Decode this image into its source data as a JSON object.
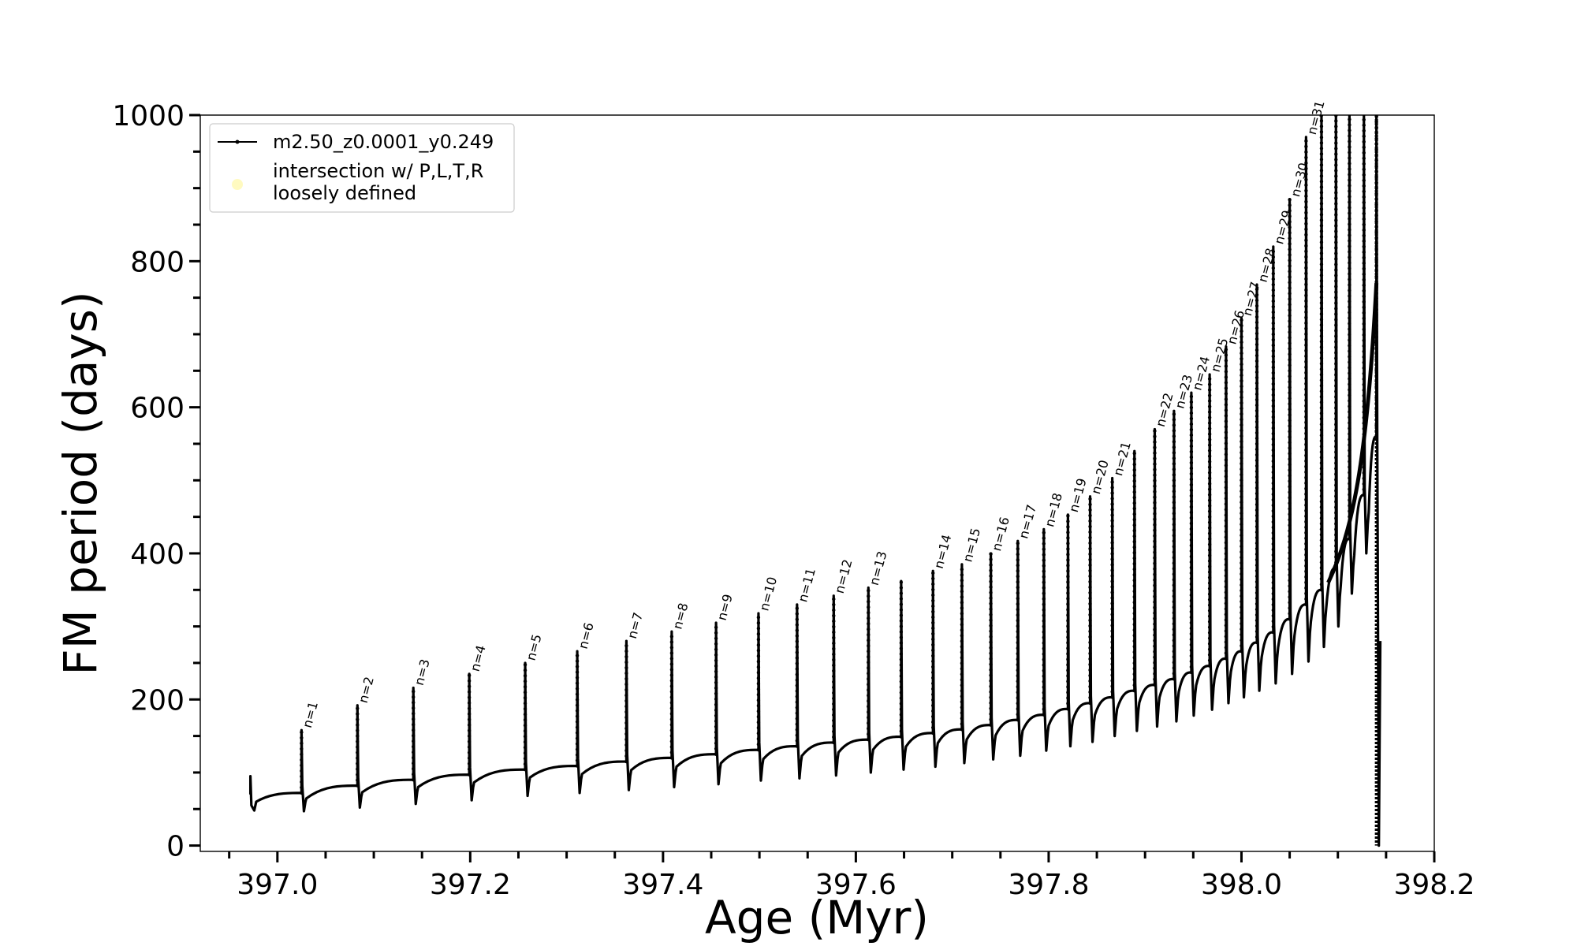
{
  "chart_data": {
    "type": "line",
    "xlabel": "Age (Myr)",
    "ylabel": "FM period (days)",
    "xlim": [
      396.92,
      398.2
    ],
    "ylim": [
      -8,
      1000
    ],
    "xticks": [
      "397.0",
      "397.2",
      "397.4",
      "397.6",
      "397.8",
      "398.0",
      "398.2"
    ],
    "yticks": [
      "0",
      "200",
      "400",
      "600",
      "800",
      "1000"
    ],
    "legend": {
      "placement": "upper-left",
      "entries": [
        {
          "label": "m2.50_z0.0001_y0.249",
          "marker": "line-with-dots",
          "color": "#000000"
        },
        {
          "label": "intersection w/ P,L,T,R\nloosely defined",
          "marker": "circle",
          "color": "#fffac0"
        }
      ]
    },
    "series": [
      {
        "name": "m2.50_z0.0001_y0.249",
        "color": "#000000",
        "start": {
          "x": 396.972,
          "y": 70
        },
        "end": {
          "x": 398.145,
          "y": 120
        },
        "pulses": [
          {
            "label": "n=1",
            "x": 397.025,
            "peak": 158,
            "dip": 47,
            "base": 72
          },
          {
            "label": "n=2",
            "x": 397.083,
            "peak": 192,
            "dip": 52,
            "base": 82
          },
          {
            "label": "n=3",
            "x": 397.141,
            "peak": 216,
            "dip": 57,
            "base": 90
          },
          {
            "label": "n=4",
            "x": 397.199,
            "peak": 235,
            "dip": 62,
            "base": 97
          },
          {
            "label": "n=5",
            "x": 397.257,
            "peak": 250,
            "dip": 68,
            "base": 104
          },
          {
            "label": "n=6",
            "x": 397.311,
            "peak": 266,
            "dip": 72,
            "base": 109
          },
          {
            "label": "n=7",
            "x": 397.362,
            "peak": 280,
            "dip": 76,
            "base": 115
          },
          {
            "label": "n=8",
            "x": 397.409,
            "peak": 293,
            "dip": 80,
            "base": 120
          },
          {
            "label": "n=9",
            "x": 397.455,
            "peak": 305,
            "dip": 84,
            "base": 125
          },
          {
            "label": "n=10",
            "x": 397.499,
            "peak": 318,
            "dip": 89,
            "base": 131
          },
          {
            "label": "n=11",
            "x": 397.539,
            "peak": 330,
            "dip": 92,
            "base": 136
          },
          {
            "label": "n=12",
            "x": 397.577,
            "peak": 342,
            "dip": 96,
            "base": 141
          },
          {
            "label": "n=13",
            "x": 397.613,
            "peak": 353,
            "dip": 100,
            "base": 145
          },
          {
            "label": "",
            "x": 397.647,
            "peak": 362,
            "dip": 104,
            "base": 149
          },
          {
            "label": "n=14",
            "x": 397.68,
            "peak": 376,
            "dip": 108,
            "base": 154
          },
          {
            "label": "n=15",
            "x": 397.71,
            "peak": 385,
            "dip": 113,
            "base": 159
          },
          {
            "label": "n=16",
            "x": 397.74,
            "peak": 400,
            "dip": 118,
            "base": 165
          },
          {
            "label": "n=17",
            "x": 397.768,
            "peak": 417,
            "dip": 123,
            "base": 172
          },
          {
            "label": "n=18",
            "x": 397.795,
            "peak": 433,
            "dip": 130,
            "base": 179
          },
          {
            "label": "n=19",
            "x": 397.82,
            "peak": 453,
            "dip": 136,
            "base": 187
          },
          {
            "label": "n=20",
            "x": 397.843,
            "peak": 478,
            "dip": 142,
            "base": 195
          },
          {
            "label": "n=21",
            "x": 397.866,
            "peak": 503,
            "dip": 150,
            "base": 203
          },
          {
            "label": "",
            "x": 397.889,
            "peak": 540,
            "dip": 157,
            "base": 212
          },
          {
            "label": "n=22",
            "x": 397.91,
            "peak": 570,
            "dip": 163,
            "base": 220
          },
          {
            "label": "n=23",
            "x": 397.93,
            "peak": 595,
            "dip": 170,
            "base": 228
          },
          {
            "label": "n=24",
            "x": 397.948,
            "peak": 620,
            "dip": 178,
            "base": 237
          },
          {
            "label": "n=25",
            "x": 397.967,
            "peak": 645,
            "dip": 186,
            "base": 246
          },
          {
            "label": "n=26",
            "x": 397.984,
            "peak": 683,
            "dip": 195,
            "base": 256
          },
          {
            "label": "n=27",
            "x": 398.0,
            "peak": 722,
            "dip": 203,
            "base": 266
          },
          {
            "label": "n=28",
            "x": 398.016,
            "peak": 768,
            "dip": 212,
            "base": 278
          },
          {
            "label": "n=29",
            "x": 398.033,
            "peak": 820,
            "dip": 222,
            "base": 292
          },
          {
            "label": "n=30",
            "x": 398.05,
            "peak": 885,
            "dip": 235,
            "base": 310
          },
          {
            "label": "n=31",
            "x": 398.067,
            "peak": 970,
            "dip": 252,
            "base": 330
          },
          {
            "label": "",
            "x": 398.083,
            "peak": 1000,
            "dip": 272,
            "base": 350
          },
          {
            "label": "",
            "x": 398.098,
            "peak": 1000,
            "dip": 300,
            "base": 380
          },
          {
            "label": "",
            "x": 398.112,
            "peak": 1000,
            "dip": 345,
            "base": 420
          },
          {
            "label": "",
            "x": 398.127,
            "peak": 1000,
            "dip": 400,
            "base": 480
          },
          {
            "label": "",
            "x": 398.14,
            "peak": 1000,
            "dip": 0,
            "base": 560
          }
        ]
      }
    ]
  }
}
